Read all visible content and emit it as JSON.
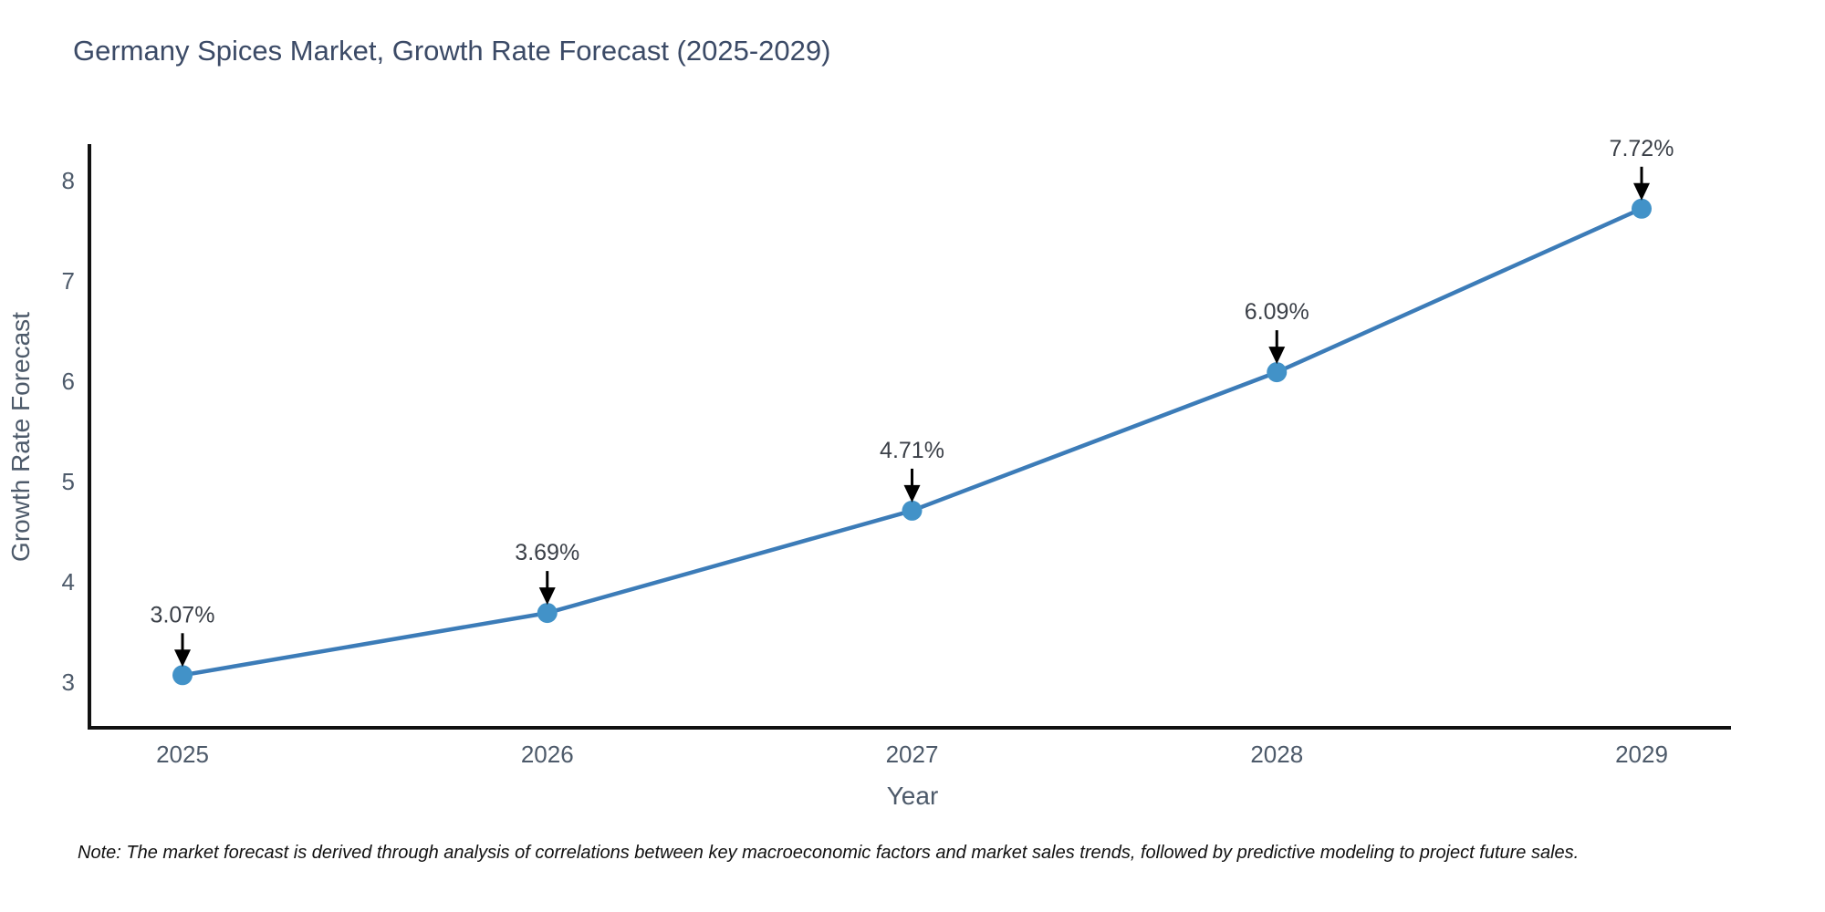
{
  "title": "Germany Spices Market, Growth Rate Forecast (2025-2029)",
  "note": "Note: The market forecast is derived through analysis of correlations between key macroeconomic factors and market sales trends, followed by predictive modeling to project future sales.",
  "chart_data": {
    "type": "line",
    "title": "Germany Spices Market, Growth Rate Forecast (2025-2029)",
    "xlabel": "Year",
    "ylabel": "Growth Rate Forecast",
    "x": [
      2025,
      2026,
      2027,
      2028,
      2029
    ],
    "values": [
      3.07,
      3.69,
      4.71,
      6.09,
      7.72
    ],
    "point_labels": [
      "3.07%",
      "3.69%",
      "4.71%",
      "6.09%",
      "7.72%"
    ],
    "xtick_labels": [
      "2025",
      "2026",
      "2027",
      "2028",
      "2029"
    ],
    "yticks": [
      3,
      4,
      5,
      6,
      7,
      8
    ],
    "xlim": [
      2024.74,
      2029.25
    ],
    "ylim": [
      2.55,
      8.35
    ],
    "grid": false,
    "legend": "none",
    "colors": {
      "line": "#3c7cb8",
      "marker": "#4292c8",
      "axis": "#111111",
      "tick_label": "#4d5a6a",
      "title": "#3b4a66",
      "annotation_text": "#3a3f47",
      "arrow": "#000000",
      "background": "#ffffff"
    }
  }
}
